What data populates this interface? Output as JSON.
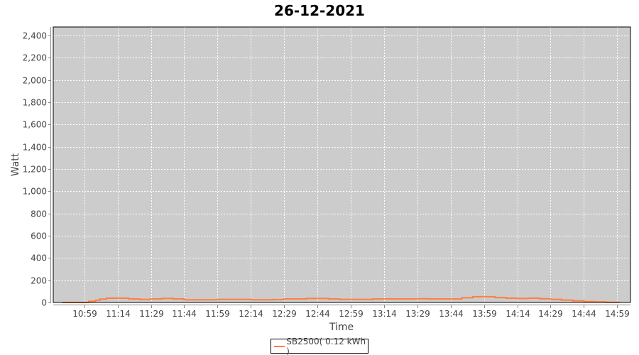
{
  "chart_data": {
    "type": "line",
    "title": "26-12-2021",
    "xlabel": "Time",
    "ylabel": "Watt",
    "ylim": [
      0,
      2477
    ],
    "xlim": [
      "10:45",
      "15:05"
    ],
    "yticks": [
      "0",
      "200",
      "400",
      "600",
      "800",
      "1,000",
      "1,200",
      "1,400",
      "1,600",
      "1,800",
      "2,000",
      "2,200",
      "2,400"
    ],
    "xticks": [
      "10:59",
      "11:14",
      "11:29",
      "11:44",
      "11:59",
      "12:14",
      "12:29",
      "12:44",
      "12:59",
      "13:14",
      "13:29",
      "13:44",
      "13:59",
      "14:14",
      "14:29",
      "14:44",
      "14:59"
    ],
    "grid": true,
    "legend_position": "bottom",
    "series": [
      {
        "name": "SB2500( 0.12 kWh )",
        "color": "#ff7f3f",
        "x": [
          "10:49",
          "10:54",
          "10:59",
          "11:01",
          "11:04",
          "11:06",
          "11:09",
          "11:14",
          "11:19",
          "11:24",
          "11:29",
          "11:34",
          "11:39",
          "11:44",
          "11:49",
          "11:54",
          "11:59",
          "12:04",
          "12:09",
          "12:14",
          "12:19",
          "12:24",
          "12:29",
          "12:34",
          "12:39",
          "12:44",
          "12:49",
          "12:54",
          "12:59",
          "13:04",
          "13:09",
          "13:14",
          "13:19",
          "13:24",
          "13:29",
          "13:34",
          "13:39",
          "13:44",
          "13:49",
          "13:54",
          "13:59",
          "14:04",
          "14:09",
          "14:14",
          "14:19",
          "14:24",
          "14:29",
          "14:34",
          "14:39",
          "14:44",
          "14:49",
          "14:54",
          "15:00"
        ],
        "values": [
          0,
          0,
          0,
          10,
          20,
          30,
          38,
          38,
          32,
          28,
          32,
          36,
          32,
          24,
          24,
          24,
          28,
          28,
          28,
          24,
          24,
          26,
          32,
          32,
          36,
          36,
          32,
          28,
          28,
          28,
          32,
          32,
          32,
          32,
          34,
          32,
          32,
          32,
          42,
          52,
          52,
          44,
          38,
          36,
          38,
          34,
          28,
          22,
          14,
          8,
          6,
          2,
          0
        ]
      }
    ]
  }
}
